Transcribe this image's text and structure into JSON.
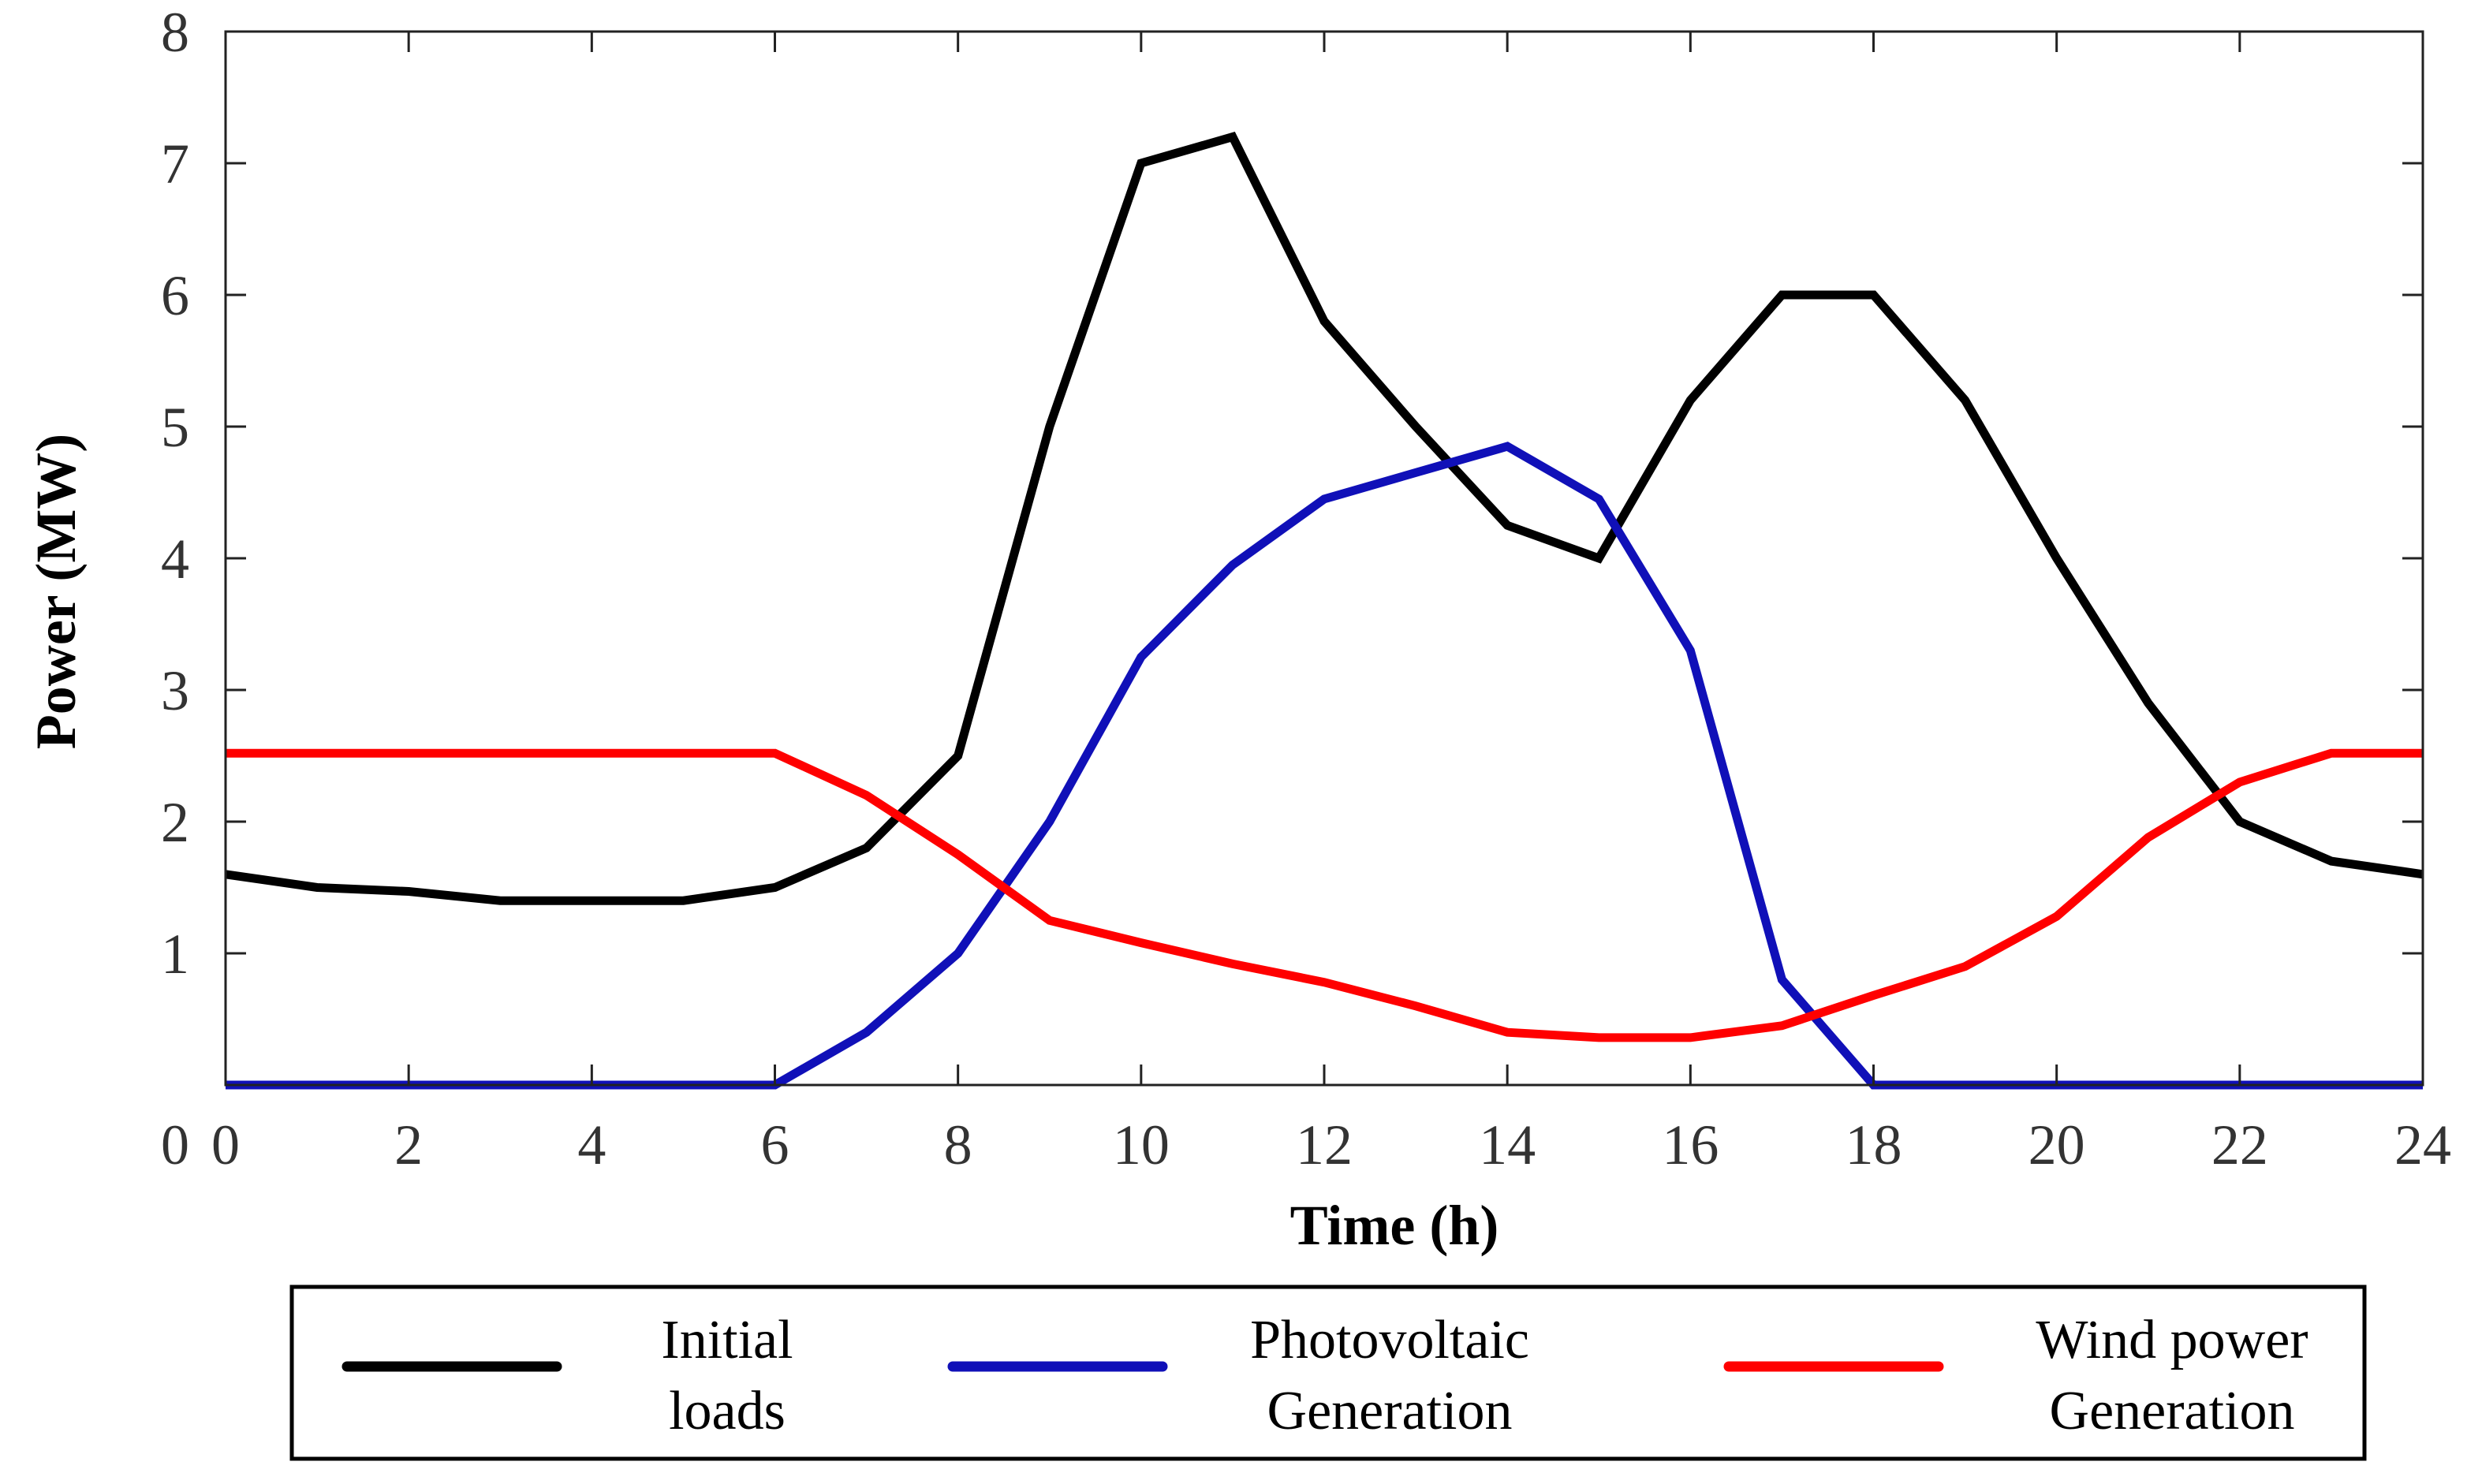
{
  "chart_data": {
    "type": "line",
    "title": "",
    "xlabel": "Time (h)",
    "ylabel": "Power (MW)",
    "xlim": [
      0,
      24
    ],
    "ylim": [
      0,
      8
    ],
    "grid": false,
    "legend_position": "bottom",
    "x_ticks": [
      0,
      2,
      4,
      6,
      8,
      10,
      12,
      14,
      16,
      18,
      20,
      22,
      24
    ],
    "y_ticks": [
      0,
      1,
      2,
      3,
      4,
      5,
      6,
      7,
      8
    ],
    "x": [
      0,
      1,
      2,
      3,
      4,
      5,
      6,
      7,
      8,
      9,
      10,
      11,
      12,
      13,
      14,
      15,
      16,
      17,
      18,
      19,
      20,
      21,
      22,
      23,
      24
    ],
    "series": [
      {
        "name": "Initial loads",
        "legend_line1": "Initial",
        "legend_line2": "loads",
        "color": "#000000",
        "values": [
          1.6,
          1.5,
          1.47,
          1.4,
          1.4,
          1.4,
          1.5,
          1.8,
          2.5,
          5.0,
          7.0,
          7.2,
          5.8,
          5.0,
          4.25,
          4.0,
          5.2,
          6.0,
          6.0,
          5.2,
          4.0,
          2.9,
          2.0,
          1.7,
          1.6
        ]
      },
      {
        "name": "Photovoltaic Generation",
        "legend_line1": "Photovoltaic",
        "legend_line2": "Generation",
        "color": "#1010b8",
        "values": [
          0,
          0,
          0,
          0,
          0,
          0,
          0,
          0.4,
          1.0,
          2.0,
          3.25,
          3.95,
          4.45,
          4.65,
          4.85,
          4.45,
          3.3,
          0.8,
          0,
          0,
          0,
          0,
          0,
          0,
          0
        ]
      },
      {
        "name": "Wind power Generation",
        "legend_line1": "Wind power",
        "legend_line2": "Generation",
        "color": "#ff0000",
        "values": [
          2.52,
          2.52,
          2.52,
          2.52,
          2.52,
          2.52,
          2.52,
          2.2,
          1.75,
          1.25,
          1.08,
          0.92,
          0.78,
          0.6,
          0.4,
          0.36,
          0.36,
          0.45,
          0.68,
          0.9,
          1.28,
          1.88,
          2.3,
          2.52,
          2.52
        ]
      }
    ]
  }
}
